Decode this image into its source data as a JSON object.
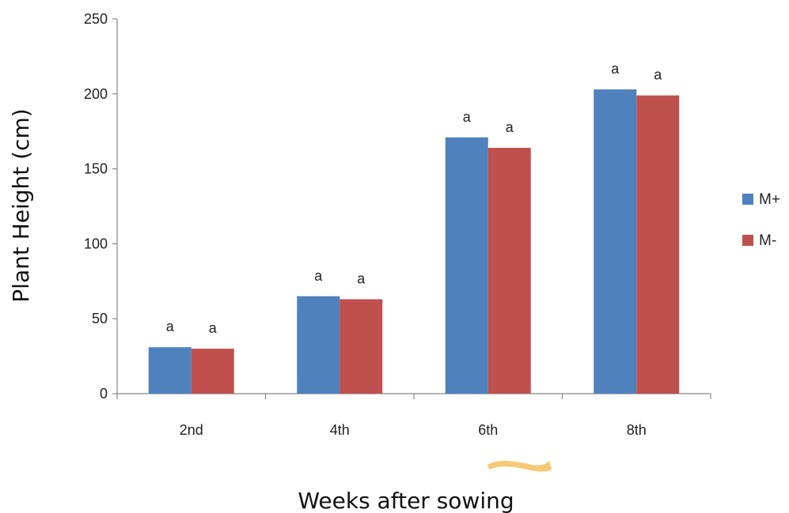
{
  "chart_data": {
    "type": "bar",
    "title": "",
    "xlabel": "Weeks after sowing",
    "ylabel": "Plant Height (cm)",
    "ylim": [
      0,
      250
    ],
    "yticks": [
      0,
      50,
      100,
      150,
      200,
      250
    ],
    "categories": [
      "2nd",
      "4th",
      "6th",
      "8th"
    ],
    "series": [
      {
        "name": "M+",
        "color": "#4f81bd",
        "values": [
          31,
          65,
          171,
          203
        ],
        "labels": [
          "a",
          "a",
          "a",
          "a"
        ]
      },
      {
        "name": "M-",
        "color": "#c0504d",
        "values": [
          30,
          63,
          164,
          199
        ],
        "labels": [
          "a",
          "a",
          "a",
          "a"
        ]
      }
    ],
    "legend": "right",
    "grid": false
  },
  "decoration": {
    "arrow_color": "#f5c466"
  }
}
